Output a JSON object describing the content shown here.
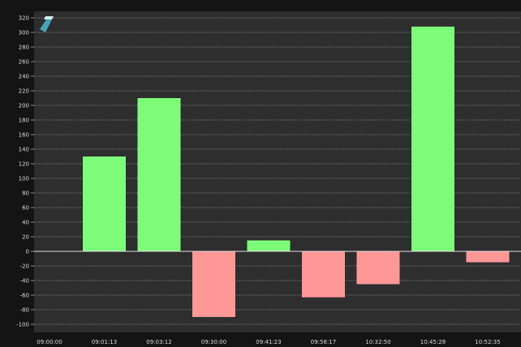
{
  "colors": {
    "background": "#141414",
    "plot_background": "#2e2e2e",
    "grid": "#8a8a8a",
    "positive": "#7dfc7a",
    "negative": "#ff9797",
    "logo": "#4aa3b8"
  },
  "logo_icon": "stylized-slash-logo-icon",
  "chart_data": {
    "type": "bar",
    "categories": [
      "09:00:00",
      "09:01:13",
      "09:03:12",
      "09:30:00",
      "09:41:23",
      "09:58:17",
      "10:32:50",
      "10:45:28",
      "10:52:35"
    ],
    "values": [
      0,
      130,
      210,
      -90,
      15,
      -63,
      -45,
      308,
      -15
    ],
    "ylim": [
      -100,
      320
    ],
    "yticks": [
      320,
      300,
      280,
      260,
      240,
      220,
      200,
      180,
      160,
      140,
      120,
      100,
      80,
      60,
      40,
      20,
      0,
      -20,
      -40,
      -60,
      -80,
      -100
    ],
    "grid": true,
    "xlabel": "",
    "ylabel": "",
    "title": ""
  }
}
